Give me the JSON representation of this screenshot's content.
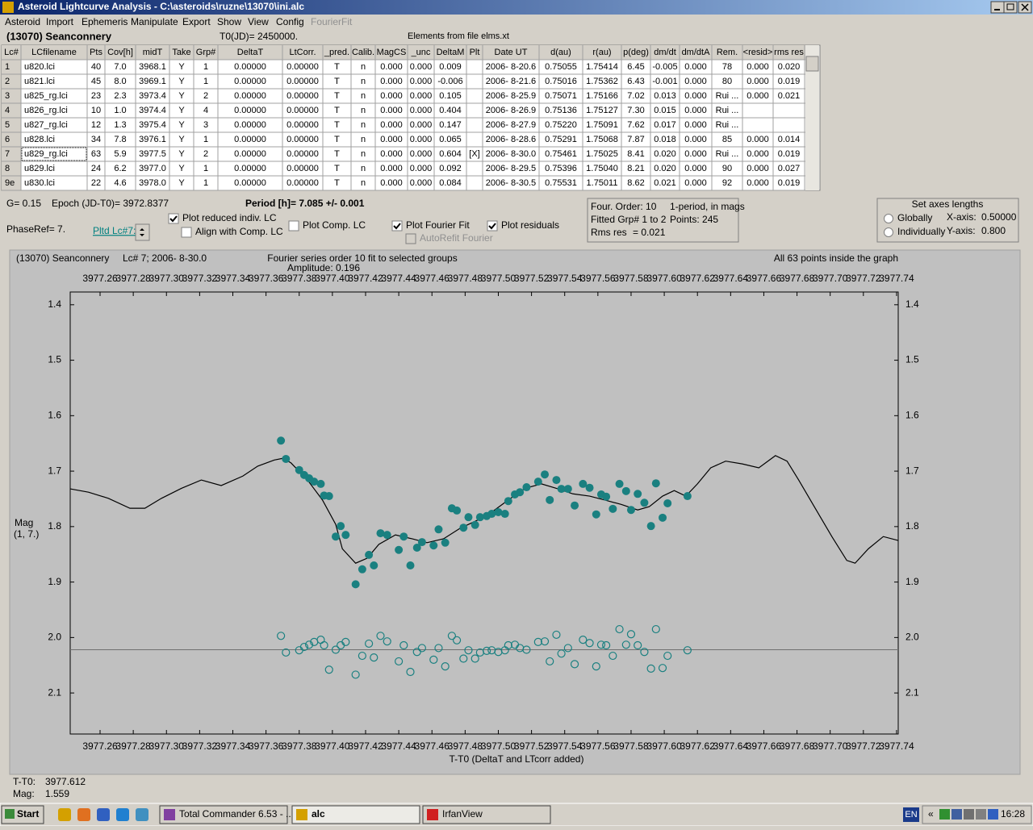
{
  "window": {
    "title": "Asteroid Lightcurve Analysis - C:\\asteroids\\ruzne\\13070\\ini.alc",
    "menu": [
      "Asteroid",
      "Import",
      "Ephemeris",
      "Manipulate",
      "Export",
      "Show",
      "View",
      "Config",
      "FourierFit"
    ]
  },
  "header": {
    "object": "(13070) Seanconnery",
    "t0": "T0(JD)= 2450000.",
    "elements": "Elements from file elms.xt"
  },
  "table": {
    "columns": [
      "Lc#",
      "LCfilename",
      "Pts",
      "Cov[h]",
      "midT",
      "Take",
      "Grp#",
      "DeltaT",
      "LtCorr.",
      "_pred.",
      "Calib.",
      "MagCS",
      "_unc",
      "DeltaM",
      "Plt",
      "Date UT",
      "d(au)",
      "r(au)",
      "p(deg)",
      "dm/dt",
      "dm/dtA",
      "Rem.",
      "<resid>",
      "rms res"
    ],
    "rows": [
      [
        "1",
        "u820.lci",
        "40",
        "7.0",
        "3968.1",
        "Y",
        "1",
        "0.00000",
        "0.00000",
        "T",
        "n",
        "0.000",
        "0.000",
        "0.009",
        null,
        "2006- 8-20.6",
        "0.75055",
        "1.75414",
        "6.45",
        "-0.005",
        "0.000",
        "78",
        "0.000",
        "0.020"
      ],
      [
        "2",
        "u821.lci",
        "45",
        "8.0",
        "3969.1",
        "Y",
        "1",
        "0.00000",
        "0.00000",
        "T",
        "n",
        "0.000",
        "0.000",
        "-0.006",
        null,
        "2006- 8-21.6",
        "0.75016",
        "1.75362",
        "6.43",
        "-0.001",
        "0.000",
        "80",
        "0.000",
        "0.019"
      ],
      [
        "3",
        "u825_rg.lci",
        "23",
        "2.3",
        "3973.4",
        "Y",
        "2",
        "0.00000",
        "0.00000",
        "T",
        "n",
        "0.000",
        "0.000",
        "0.105",
        null,
        "2006- 8-25.9",
        "0.75071",
        "1.75166",
        "7.02",
        "0.013",
        "0.000",
        "Rui ...",
        "0.000",
        "0.021"
      ],
      [
        "4",
        "u826_rg.lci",
        "10",
        "1.0",
        "3974.4",
        "Y",
        "4",
        "0.00000",
        "0.00000",
        "T",
        "n",
        "0.000",
        "0.000",
        "0.404",
        null,
        "2006- 8-26.9",
        "0.75136",
        "1.75127",
        "7.30",
        "0.015",
        "0.000",
        "Rui ...",
        null,
        null
      ],
      [
        "5",
        "u827_rg.lci",
        "12",
        "1.3",
        "3975.4",
        "Y",
        "3",
        "0.00000",
        "0.00000",
        "T",
        "n",
        "0.000",
        "0.000",
        "0.147",
        null,
        "2006- 8-27.9",
        "0.75220",
        "1.75091",
        "7.62",
        "0.017",
        "0.000",
        "Rui ...",
        null,
        null
      ],
      [
        "6",
        "u828.lci",
        "34",
        "7.8",
        "3976.1",
        "Y",
        "1",
        "0.00000",
        "0.00000",
        "T",
        "n",
        "0.000",
        "0.000",
        "0.065",
        null,
        "2006- 8-28.6",
        "0.75291",
        "1.75068",
        "7.87",
        "0.018",
        "0.000",
        "85",
        "0.000",
        "0.014"
      ],
      [
        "7",
        "u829_rg.lci",
        "63",
        "5.9",
        "3977.5",
        "Y",
        "2",
        "0.00000",
        "0.00000",
        "T",
        "n",
        "0.000",
        "0.000",
        "0.604",
        "[X]",
        "2006- 8-30.0",
        "0.75461",
        "1.75025",
        "8.41",
        "0.020",
        "0.000",
        "Rui ...",
        "0.000",
        "0.019"
      ],
      [
        "8",
        "u829.lci",
        "24",
        "6.2",
        "3977.0",
        "Y",
        "1",
        "0.00000",
        "0.00000",
        "T",
        "n",
        "0.000",
        "0.000",
        "0.092",
        null,
        "2006- 8-29.5",
        "0.75396",
        "1.75040",
        "8.21",
        "0.020",
        "0.000",
        "90",
        "0.000",
        "0.027"
      ],
      [
        "9e",
        "u830.lci",
        "22",
        "4.6",
        "3978.0",
        "Y",
        "1",
        "0.00000",
        "0.00000",
        "T",
        "n",
        "0.000",
        "0.000",
        "0.084",
        null,
        "2006- 8-30.5",
        "0.75531",
        "1.75011",
        "8.62",
        "0.021",
        "0.000",
        "92",
        "0.000",
        "0.019"
      ]
    ]
  },
  "controls": {
    "g": "G= 0.15",
    "epoch": "Epoch (JD-T0)= 3972.8377",
    "period": "Period [h]= 7.085 +/- 0.001",
    "phaseref": "PhaseRef= 7.",
    "pltd": "Pltd Lc#7:",
    "checkboxes": [
      {
        "label": "Plot reduced indiv. LC",
        "checked": true,
        "enabled": true
      },
      {
        "label": "Align with Comp. LC",
        "checked": false,
        "enabled": true
      },
      {
        "label": "Plot Comp. LC",
        "checked": false,
        "enabled": true
      },
      {
        "label": "Plot Fourier Fit",
        "checked": true,
        "enabled": true
      },
      {
        "label": "AutoRefit Fourier",
        "checked": false,
        "enabled": false
      },
      {
        "label": "Plot residuals",
        "checked": true,
        "enabled": true
      }
    ],
    "info": [
      "Four. Order: 10",
      "1-period, in mags",
      "Fitted Grp# 1 to 2",
      "Points: 245",
      "Rms res",
      "= 0.021"
    ],
    "axes_box": {
      "title": "Set axes lengths",
      "options": [
        {
          "label": "Globally",
          "selected": false
        },
        {
          "label": "Individually",
          "selected": false
        }
      ],
      "x_label": "X-axis:",
      "x_value": "0.50000",
      "y_label": "Y-axis:",
      "y_value": "0.800"
    }
  },
  "chart_data": {
    "type": "scatter",
    "title": "Fourier series order 10 fit to selected groups",
    "subtitle": "Amplitude: 0.196",
    "annotations": [
      "(13070) Seanconnery",
      "Lc# 7; 2006- 8-30.0",
      "All 63 points inside the graph"
    ],
    "xlabel": "T-T0 (DeltaT and LTcorr added)",
    "ylabel": [
      "Mag",
      "(1, 7.)"
    ],
    "xlim": [
      3977.242,
      3977.741
    ],
    "ylim": [
      1.377,
      2.174
    ],
    "y_inverted": true,
    "xticks": [
      3977.26,
      3977.28,
      {
        "value": 3977.3,
        "label": "3977.30"
      },
      3977.32,
      3977.34,
      3977.36,
      3977.38,
      {
        "value": 3977.4,
        "label": "3977.40"
      },
      3977.42,
      3977.44,
      3977.46,
      3977.48,
      {
        "value": 3977.5,
        "label": "3977.50"
      },
      3977.52,
      3977.54,
      3977.56,
      3977.58,
      {
        "value": 3977.6,
        "label": "3977.60"
      },
      3977.62,
      3977.64,
      3977.66,
      3977.68,
      {
        "value": 3977.7,
        "label": "3977.70"
      },
      3977.72,
      3977.74
    ],
    "yticks": [
      1.4,
      1.5,
      1.6,
      1.7,
      1.8,
      1.9,
      {
        "value": 2,
        "label": "2.0"
      },
      2.1
    ],
    "residual_zero": 2.022,
    "series": [
      {
        "kind": "line",
        "color": "#000000",
        "x": [
          3977.242,
          3977.253,
          3977.265,
          3977.278,
          3977.287,
          3977.297,
          3977.309,
          3977.321,
          3977.333,
          3977.346,
          3977.355,
          3977.365,
          3977.37,
          3977.375,
          3977.385,
          3977.394,
          3977.402,
          3977.406,
          3977.414,
          3977.421,
          3977.428,
          3977.438,
          3977.448,
          3977.457,
          3977.467,
          3977.477,
          3977.487,
          3977.496,
          3977.506,
          3977.516,
          3977.526,
          3977.535,
          3977.545,
          3977.555,
          3977.564,
          3977.574,
          3977.584,
          3977.591,
          3977.599,
          3977.606,
          3977.613,
          3977.62,
          3977.628,
          3977.637,
          3977.647,
          3977.657,
          3977.667,
          3977.674,
          3977.681,
          3977.691,
          3977.701,
          3977.71,
          3977.715,
          3977.723,
          3977.732,
          3977.741
        ],
        "values": [
          1.732,
          1.738,
          1.749,
          1.767,
          1.767,
          1.749,
          1.731,
          1.716,
          1.726,
          1.709,
          1.691,
          1.68,
          1.677,
          1.685,
          1.716,
          1.752,
          1.796,
          1.84,
          1.866,
          1.857,
          1.832,
          1.815,
          1.822,
          1.829,
          1.822,
          1.803,
          1.789,
          1.774,
          1.752,
          1.731,
          1.723,
          1.731,
          1.741,
          1.745,
          1.752,
          1.76,
          1.77,
          1.764,
          1.745,
          1.735,
          1.745,
          1.723,
          1.694,
          1.682,
          1.687,
          1.694,
          1.672,
          1.682,
          1.716,
          1.767,
          1.818,
          1.861,
          1.866,
          1.84,
          1.818,
          1.825
        ]
      },
      {
        "kind": "filled",
        "color": "#1a8080",
        "x": [
          3977.369,
          3977.372,
          3977.38,
          3977.383,
          3977.386,
          3977.389,
          3977.393,
          3977.395,
          3977.398,
          3977.402,
          3977.405,
          3977.408,
          3977.414,
          3977.418,
          3977.422,
          3977.425,
          3977.429,
          3977.433,
          3977.44,
          3977.443,
          3977.447,
          3977.451,
          3977.454,
          3977.461,
          3977.464,
          3977.468,
          3977.472,
          3977.475,
          3977.479,
          3977.482,
          3977.486,
          3977.489,
          3977.493,
          3977.496,
          3977.5,
          3977.504,
          3977.506,
          3977.51,
          3977.513,
          3977.517,
          3977.524,
          3977.528,
          3977.531,
          3977.535,
          3977.538,
          3977.542,
          3977.546,
          3977.551,
          3977.555,
          3977.559,
          3977.562,
          3977.565,
          3977.569,
          3977.573,
          3977.577,
          3977.58,
          3977.584,
          3977.588,
          3977.592,
          3977.595,
          3977.599,
          3977.602,
          3977.614
        ],
        "values": [
          1.645,
          1.678,
          1.698,
          1.707,
          1.713,
          1.719,
          1.723,
          1.744,
          1.745,
          1.818,
          1.799,
          1.815,
          1.904,
          1.877,
          1.851,
          1.87,
          1.812,
          1.815,
          1.842,
          1.818,
          1.87,
          1.838,
          1.828,
          1.834,
          1.805,
          1.829,
          1.767,
          1.771,
          1.802,
          1.783,
          1.797,
          1.783,
          1.781,
          1.777,
          1.774,
          1.777,
          1.754,
          1.742,
          1.738,
          1.729,
          1.719,
          1.706,
          1.752,
          1.716,
          1.732,
          1.732,
          1.762,
          1.723,
          1.73,
          1.778,
          1.742,
          1.746,
          1.768,
          1.723,
          1.736,
          1.77,
          1.741,
          1.757,
          1.799,
          1.722,
          1.784,
          1.758,
          1.745
        ]
      },
      {
        "kind": "open",
        "color": "#1a8080",
        "x": [
          3977.369,
          3977.372,
          3977.38,
          3977.383,
          3977.386,
          3977.389,
          3977.393,
          3977.395,
          3977.398,
          3977.402,
          3977.405,
          3977.408,
          3977.414,
          3977.418,
          3977.422,
          3977.425,
          3977.429,
          3977.433,
          3977.44,
          3977.443,
          3977.447,
          3977.451,
          3977.454,
          3977.461,
          3977.464,
          3977.468,
          3977.472,
          3977.475,
          3977.479,
          3977.482,
          3977.486,
          3977.489,
          3977.493,
          3977.496,
          3977.5,
          3977.504,
          3977.506,
          3977.51,
          3977.513,
          3977.517,
          3977.524,
          3977.528,
          3977.531,
          3977.535,
          3977.538,
          3977.542,
          3977.546,
          3977.551,
          3977.555,
          3977.559,
          3977.562,
          3977.565,
          3977.569,
          3977.573,
          3977.577,
          3977.58,
          3977.584,
          3977.588,
          3977.592,
          3977.595,
          3977.599,
          3977.602,
          3977.614
        ],
        "values": [
          1.997,
          2.027,
          2.023,
          2.017,
          2.013,
          2.008,
          2.004,
          2.014,
          2.058,
          2.022,
          2.014,
          2.008,
          2.067,
          2.033,
          2.011,
          2.036,
          1.997,
          2.007,
          2.043,
          2.014,
          2.062,
          2.026,
          2.019,
          2.04,
          2.019,
          2.052,
          1.997,
          2.005,
          2.038,
          2.023,
          2.038,
          2.027,
          2.024,
          2.023,
          2.026,
          2.023,
          2.014,
          2.013,
          2.019,
          2.022,
          2.008,
          2.007,
          2.043,
          1.995,
          2.029,
          2.019,
          2.048,
          2.004,
          2.01,
          2.052,
          2.013,
          2.014,
          2.033,
          1.985,
          2.013,
          1.994,
          2.014,
          2.026,
          2.056,
          1.985,
          2.055,
          2.033,
          2.023
        ]
      }
    ]
  },
  "status": {
    "tt0_label": "T-T0:",
    "tt0_value": "3977.612",
    "mag_label": "Mag:",
    "mag_value": "1.559"
  },
  "taskbar": {
    "start": "Start",
    "tasks": [
      "Total Commander 6.53 - ...",
      "alc",
      "IrfanView"
    ],
    "lang": "EN",
    "chevron": "«",
    "clock": "16:28"
  }
}
